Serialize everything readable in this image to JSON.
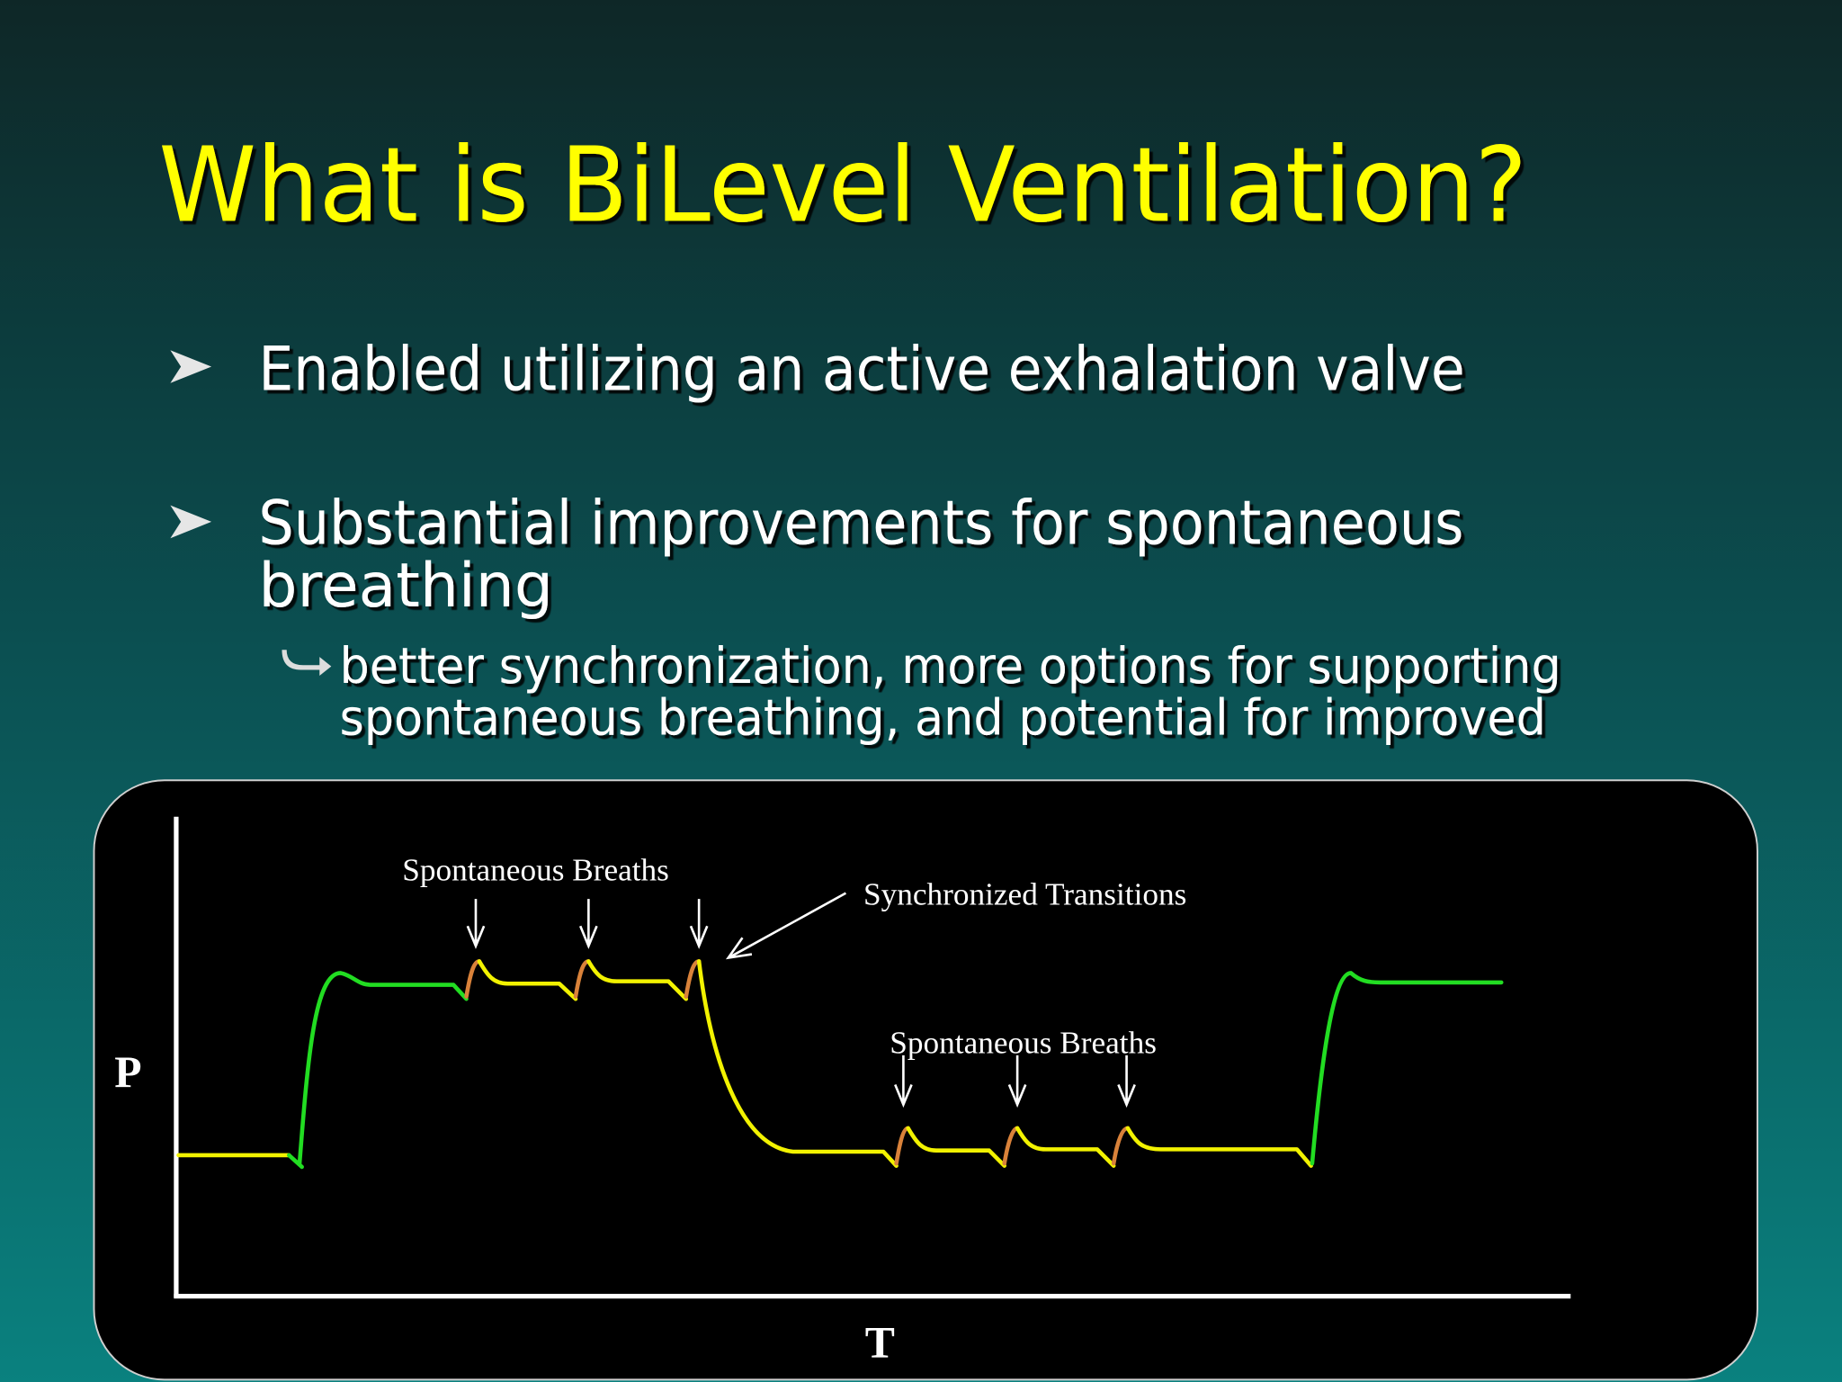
{
  "title": "What is BiLevel Ventilation?",
  "bullets": [
    {
      "lines": [
        "Enabled utilizing an active exhalation valve"
      ]
    },
    {
      "lines": [
        "Substantial improvements for spontaneous",
        "breathing"
      ],
      "sub_bullet": {
        "lines": [
          "better synchronization, more options for supporting",
          "spontaneous breathing, and potential for improved"
        ]
      }
    }
  ],
  "diagram": {
    "label_top_left": "Spontaneous Breaths",
    "label_transitions": "Synchronized Transitions",
    "label_bottom": "Spontaneous Breaths",
    "y_axis": "P",
    "x_axis": "T"
  }
}
